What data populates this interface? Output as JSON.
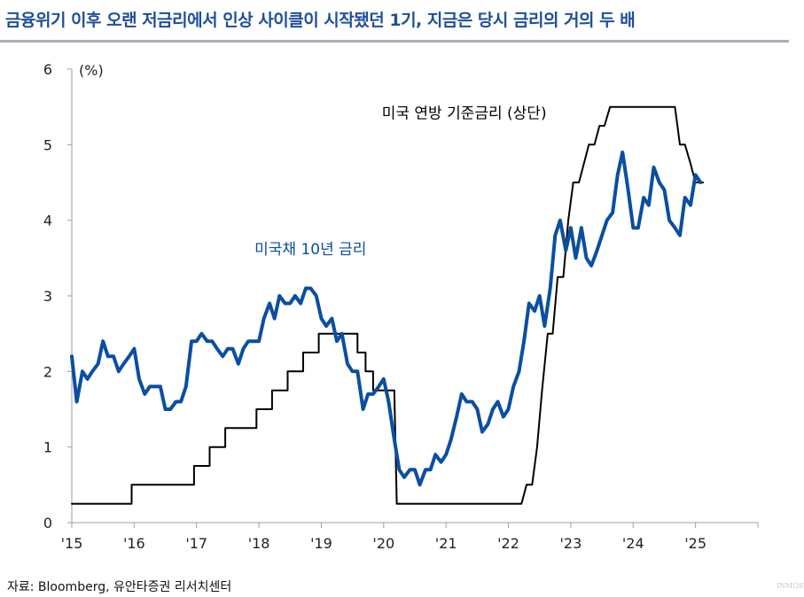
{
  "title": "금융위기 이후 오랜 저금리에서 인상 사이클이 시작됐던 1기, 지금은 당시 금리의 거의 두 배",
  "source": "자료: Bloomberg, 유안타증권 리서치센터",
  "watermark": "INMOST",
  "colors": {
    "treasury": "#0b4ea2",
    "fed": "#000000",
    "title": "#1f4e9a",
    "axis": "#9aa0a8"
  },
  "chart_data": {
    "type": "line",
    "ylabel": "(%)",
    "ylim": [
      0,
      6
    ],
    "yticks": [
      0,
      1,
      2,
      3,
      4,
      5,
      6
    ],
    "xlim": [
      2015,
      2026
    ],
    "xticks": [
      {
        "value": 2015,
        "label": "'15"
      },
      {
        "value": 2016,
        "label": "'16"
      },
      {
        "value": 2017,
        "label": "'17"
      },
      {
        "value": 2018,
        "label": "'18"
      },
      {
        "value": 2019,
        "label": "'19"
      },
      {
        "value": 2020,
        "label": "'20"
      },
      {
        "value": 2021,
        "label": "'21"
      },
      {
        "value": 2022,
        "label": "'22"
      },
      {
        "value": 2023,
        "label": "'23"
      },
      {
        "value": 2024,
        "label": "'24"
      },
      {
        "value": 2025,
        "label": "'25"
      }
    ],
    "grid": false,
    "series": [
      {
        "name": "미국 연방 기준금리 (상단)",
        "color": "#000000",
        "points": [
          [
            2015.0,
            0.25
          ],
          [
            2015.96,
            0.25
          ],
          [
            2015.96,
            0.5
          ],
          [
            2016.96,
            0.5
          ],
          [
            2016.96,
            0.75
          ],
          [
            2017.21,
            0.75
          ],
          [
            2017.21,
            1.0
          ],
          [
            2017.46,
            1.0
          ],
          [
            2017.46,
            1.25
          ],
          [
            2017.96,
            1.25
          ],
          [
            2017.96,
            1.5
          ],
          [
            2018.21,
            1.5
          ],
          [
            2018.21,
            1.75
          ],
          [
            2018.46,
            1.75
          ],
          [
            2018.46,
            2.0
          ],
          [
            2018.71,
            2.0
          ],
          [
            2018.71,
            2.25
          ],
          [
            2018.96,
            2.25
          ],
          [
            2018.96,
            2.5
          ],
          [
            2019.58,
            2.5
          ],
          [
            2019.58,
            2.25
          ],
          [
            2019.71,
            2.25
          ],
          [
            2019.71,
            2.0
          ],
          [
            2019.83,
            2.0
          ],
          [
            2019.83,
            1.75
          ],
          [
            2020.17,
            1.75
          ],
          [
            2020.21,
            0.25
          ],
          [
            2022.21,
            0.25
          ],
          [
            2022.29,
            0.5
          ],
          [
            2022.38,
            0.5
          ],
          [
            2022.46,
            1.0
          ],
          [
            2022.54,
            1.75
          ],
          [
            2022.63,
            2.5
          ],
          [
            2022.71,
            2.5
          ],
          [
            2022.79,
            3.25
          ],
          [
            2022.88,
            3.25
          ],
          [
            2022.96,
            4.0
          ],
          [
            2023.04,
            4.5
          ],
          [
            2023.13,
            4.5
          ],
          [
            2023.21,
            4.75
          ],
          [
            2023.29,
            5.0
          ],
          [
            2023.38,
            5.0
          ],
          [
            2023.46,
            5.25
          ],
          [
            2023.54,
            5.25
          ],
          [
            2023.63,
            5.5
          ],
          [
            2024.67,
            5.5
          ],
          [
            2024.75,
            5.0
          ],
          [
            2024.83,
            5.0
          ],
          [
            2024.92,
            4.75
          ],
          [
            2025.0,
            4.5
          ],
          [
            2025.12,
            4.5
          ]
        ]
      },
      {
        "name": "미국채 10년 금리",
        "color": "#0b4ea2",
        "points": [
          [
            2015.0,
            2.2
          ],
          [
            2015.08,
            1.6
          ],
          [
            2015.17,
            2.0
          ],
          [
            2015.25,
            1.9
          ],
          [
            2015.33,
            2.0
          ],
          [
            2015.42,
            2.1
          ],
          [
            2015.5,
            2.4
          ],
          [
            2015.58,
            2.2
          ],
          [
            2015.67,
            2.2
          ],
          [
            2015.75,
            2.0
          ],
          [
            2015.83,
            2.1
          ],
          [
            2015.92,
            2.2
          ],
          [
            2016.0,
            2.3
          ],
          [
            2016.08,
            1.9
          ],
          [
            2016.17,
            1.7
          ],
          [
            2016.25,
            1.8
          ],
          [
            2016.33,
            1.8
          ],
          [
            2016.42,
            1.8
          ],
          [
            2016.5,
            1.5
          ],
          [
            2016.58,
            1.5
          ],
          [
            2016.67,
            1.6
          ],
          [
            2016.75,
            1.6
          ],
          [
            2016.83,
            1.8
          ],
          [
            2016.92,
            2.4
          ],
          [
            2017.0,
            2.4
          ],
          [
            2017.08,
            2.5
          ],
          [
            2017.17,
            2.4
          ],
          [
            2017.25,
            2.4
          ],
          [
            2017.33,
            2.3
          ],
          [
            2017.42,
            2.2
          ],
          [
            2017.5,
            2.3
          ],
          [
            2017.58,
            2.3
          ],
          [
            2017.67,
            2.1
          ],
          [
            2017.75,
            2.3
          ],
          [
            2017.83,
            2.4
          ],
          [
            2017.92,
            2.4
          ],
          [
            2018.0,
            2.4
          ],
          [
            2018.08,
            2.7
          ],
          [
            2018.17,
            2.9
          ],
          [
            2018.25,
            2.7
          ],
          [
            2018.33,
            3.0
          ],
          [
            2018.42,
            2.9
          ],
          [
            2018.5,
            2.9
          ],
          [
            2018.58,
            3.0
          ],
          [
            2018.67,
            2.9
          ],
          [
            2018.75,
            3.1
          ],
          [
            2018.83,
            3.1
          ],
          [
            2018.92,
            3.0
          ],
          [
            2019.0,
            2.7
          ],
          [
            2019.08,
            2.6
          ],
          [
            2019.17,
            2.7
          ],
          [
            2019.25,
            2.4
          ],
          [
            2019.33,
            2.5
          ],
          [
            2019.42,
            2.1
          ],
          [
            2019.5,
            2.0
          ],
          [
            2019.58,
            2.0
          ],
          [
            2019.67,
            1.5
          ],
          [
            2019.75,
            1.7
          ],
          [
            2019.83,
            1.7
          ],
          [
            2019.92,
            1.8
          ],
          [
            2020.0,
            1.9
          ],
          [
            2020.08,
            1.6
          ],
          [
            2020.17,
            1.1
          ],
          [
            2020.25,
            0.7
          ],
          [
            2020.33,
            0.6
          ],
          [
            2020.42,
            0.7
          ],
          [
            2020.5,
            0.7
          ],
          [
            2020.58,
            0.5
          ],
          [
            2020.67,
            0.7
          ],
          [
            2020.75,
            0.7
          ],
          [
            2020.83,
            0.9
          ],
          [
            2020.92,
            0.8
          ],
          [
            2021.0,
            0.9
          ],
          [
            2021.08,
            1.1
          ],
          [
            2021.17,
            1.4
          ],
          [
            2021.25,
            1.7
          ],
          [
            2021.33,
            1.6
          ],
          [
            2021.42,
            1.6
          ],
          [
            2021.5,
            1.5
          ],
          [
            2021.58,
            1.2
          ],
          [
            2021.67,
            1.3
          ],
          [
            2021.75,
            1.5
          ],
          [
            2021.83,
            1.6
          ],
          [
            2021.92,
            1.4
          ],
          [
            2022.0,
            1.5
          ],
          [
            2022.08,
            1.8
          ],
          [
            2022.17,
            2.0
          ],
          [
            2022.25,
            2.4
          ],
          [
            2022.33,
            2.9
          ],
          [
            2022.42,
            2.8
          ],
          [
            2022.5,
            3.0
          ],
          [
            2022.58,
            2.6
          ],
          [
            2022.67,
            3.1
          ],
          [
            2022.75,
            3.8
          ],
          [
            2022.83,
            4.0
          ],
          [
            2022.92,
            3.6
          ],
          [
            2023.0,
            3.9
          ],
          [
            2023.08,
            3.5
          ],
          [
            2023.17,
            3.9
          ],
          [
            2023.25,
            3.5
          ],
          [
            2023.33,
            3.4
          ],
          [
            2023.42,
            3.6
          ],
          [
            2023.5,
            3.8
          ],
          [
            2023.58,
            4.0
          ],
          [
            2023.67,
            4.1
          ],
          [
            2023.75,
            4.6
          ],
          [
            2023.83,
            4.9
          ],
          [
            2023.92,
            4.4
          ],
          [
            2024.0,
            3.9
          ],
          [
            2024.08,
            3.9
          ],
          [
            2024.17,
            4.3
          ],
          [
            2024.25,
            4.2
          ],
          [
            2024.33,
            4.7
          ],
          [
            2024.42,
            4.5
          ],
          [
            2024.5,
            4.4
          ],
          [
            2024.58,
            4.0
          ],
          [
            2024.67,
            3.9
          ],
          [
            2024.75,
            3.8
          ],
          [
            2024.83,
            4.3
          ],
          [
            2024.92,
            4.2
          ],
          [
            2025.0,
            4.6
          ],
          [
            2025.08,
            4.5
          ]
        ]
      }
    ],
    "annotations": [
      {
        "text": "미국 연방 기준금리 (상단)",
        "series": 0
      },
      {
        "text": "미국채 10년 금리",
        "series": 1
      }
    ]
  }
}
